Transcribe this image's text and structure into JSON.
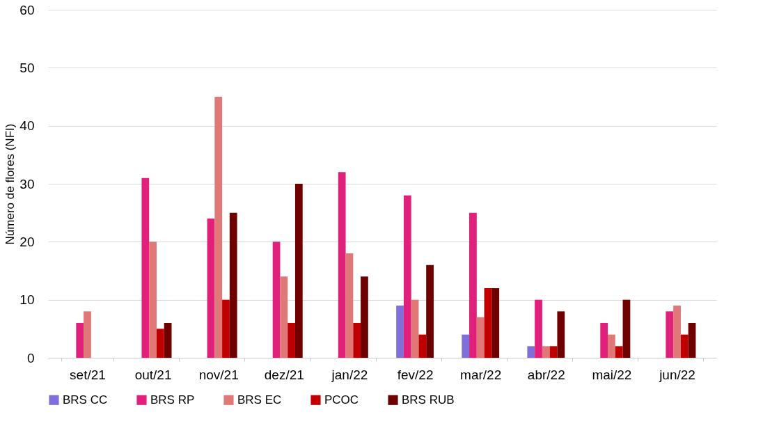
{
  "chart_data": {
    "type": "bar",
    "ylabel": "Número de flores (NFI)",
    "categories": [
      "set/21",
      "out/21",
      "nov/21",
      "dez/21",
      "jan/22",
      "fev/22",
      "mar/22",
      "abr/22",
      "mai/22",
      "jun/22"
    ],
    "series": [
      {
        "name": "BRS CC",
        "color": "#7f6fd8",
        "values": [
          0,
          0,
          0,
          0,
          0,
          9,
          4,
          2,
          0,
          0
        ]
      },
      {
        "name": "BRS RP",
        "color": "#e0207a",
        "values": [
          6,
          31,
          24,
          20,
          32,
          28,
          25,
          10,
          6,
          8
        ]
      },
      {
        "name": "BRS EC",
        "color": "#e07878",
        "values": [
          8,
          20,
          45,
          14,
          18,
          10,
          7,
          2,
          4,
          9
        ]
      },
      {
        "name": "PCOC",
        "color": "#c00000",
        "values": [
          0,
          5,
          10,
          6,
          6,
          4,
          12,
          2,
          2,
          4
        ]
      },
      {
        "name": "BRS RUB",
        "color": "#6e0000",
        "values": [
          0,
          6,
          25,
          30,
          14,
          16,
          12,
          8,
          10,
          6
        ]
      }
    ],
    "ylim": [
      0,
      60
    ],
    "yticks": [
      0,
      10,
      20,
      30,
      40,
      50,
      60
    ],
    "grid": "y",
    "legend": "bottom"
  }
}
